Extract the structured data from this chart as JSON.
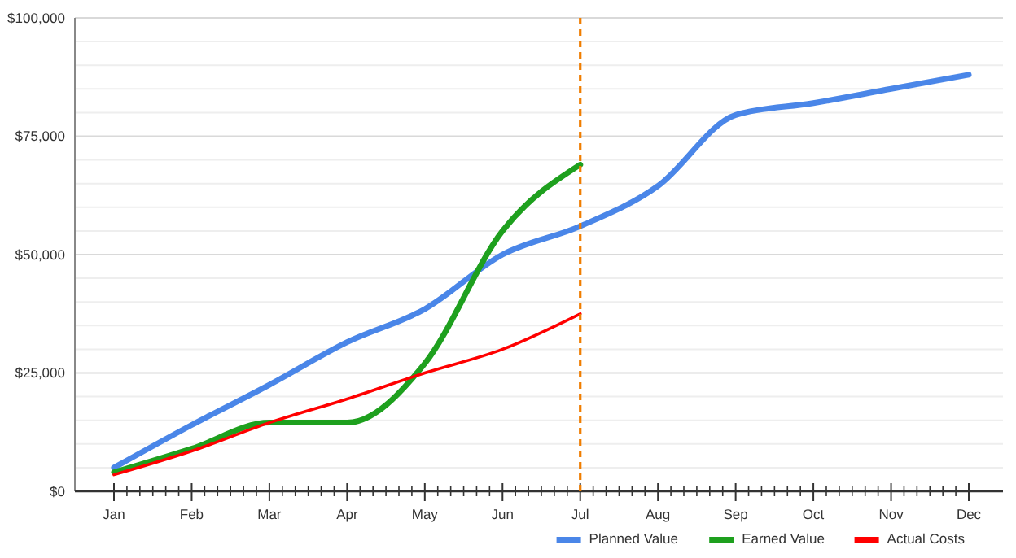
{
  "chart_data": {
    "type": "line",
    "categories": [
      "Jan",
      "Feb",
      "Mar",
      "Apr",
      "May",
      "Jun",
      "Jul",
      "Aug",
      "Sep",
      "Oct",
      "Nov",
      "Dec"
    ],
    "series": [
      {
        "name": "Planned Value",
        "color": "#4a86e8",
        "values": [
          5000,
          14000,
          22500,
          31500,
          38500,
          50000,
          56000,
          64500,
          79500,
          82000,
          85000,
          88000
        ]
      },
      {
        "name": "Earned Value",
        "color": "#1ea01e",
        "values": [
          4000,
          9000,
          14500,
          14500,
          27000,
          55000,
          69000,
          null,
          null,
          null,
          null,
          null
        ]
      },
      {
        "name": "Actual Costs",
        "color": "#ff0000",
        "values": [
          3500,
          8500,
          14500,
          19500,
          25000,
          30000,
          37500,
          null,
          null,
          null,
          null,
          null
        ]
      }
    ],
    "ylim": [
      0,
      100000
    ],
    "yticks": [
      {
        "value": 0,
        "label": "$0"
      },
      {
        "value": 5000,
        "label": null
      },
      {
        "value": 10000,
        "label": null
      },
      {
        "value": 15000,
        "label": null
      },
      {
        "value": 20000,
        "label": null
      },
      {
        "value": 25000,
        "label": "$25,000"
      },
      {
        "value": 30000,
        "label": null
      },
      {
        "value": 35000,
        "label": null
      },
      {
        "value": 40000,
        "label": null
      },
      {
        "value": 45000,
        "label": null
      },
      {
        "value": 50000,
        "label": "$50,000"
      },
      {
        "value": 55000,
        "label": null
      },
      {
        "value": 60000,
        "label": null
      },
      {
        "value": 65000,
        "label": null
      },
      {
        "value": 70000,
        "label": null
      },
      {
        "value": 75000,
        "label": "$75,000"
      },
      {
        "value": 80000,
        "label": null
      },
      {
        "value": 85000,
        "label": null
      },
      {
        "value": 90000,
        "label": null
      },
      {
        "value": 95000,
        "label": null
      },
      {
        "value": 100000,
        "label": "$100,000"
      }
    ],
    "grid": "y",
    "legend": "bottom right",
    "ref_lines": [
      {
        "axis": "x",
        "value": "Jul",
        "color": "#f07d00",
        "line_style": "dashed"
      }
    ]
  }
}
